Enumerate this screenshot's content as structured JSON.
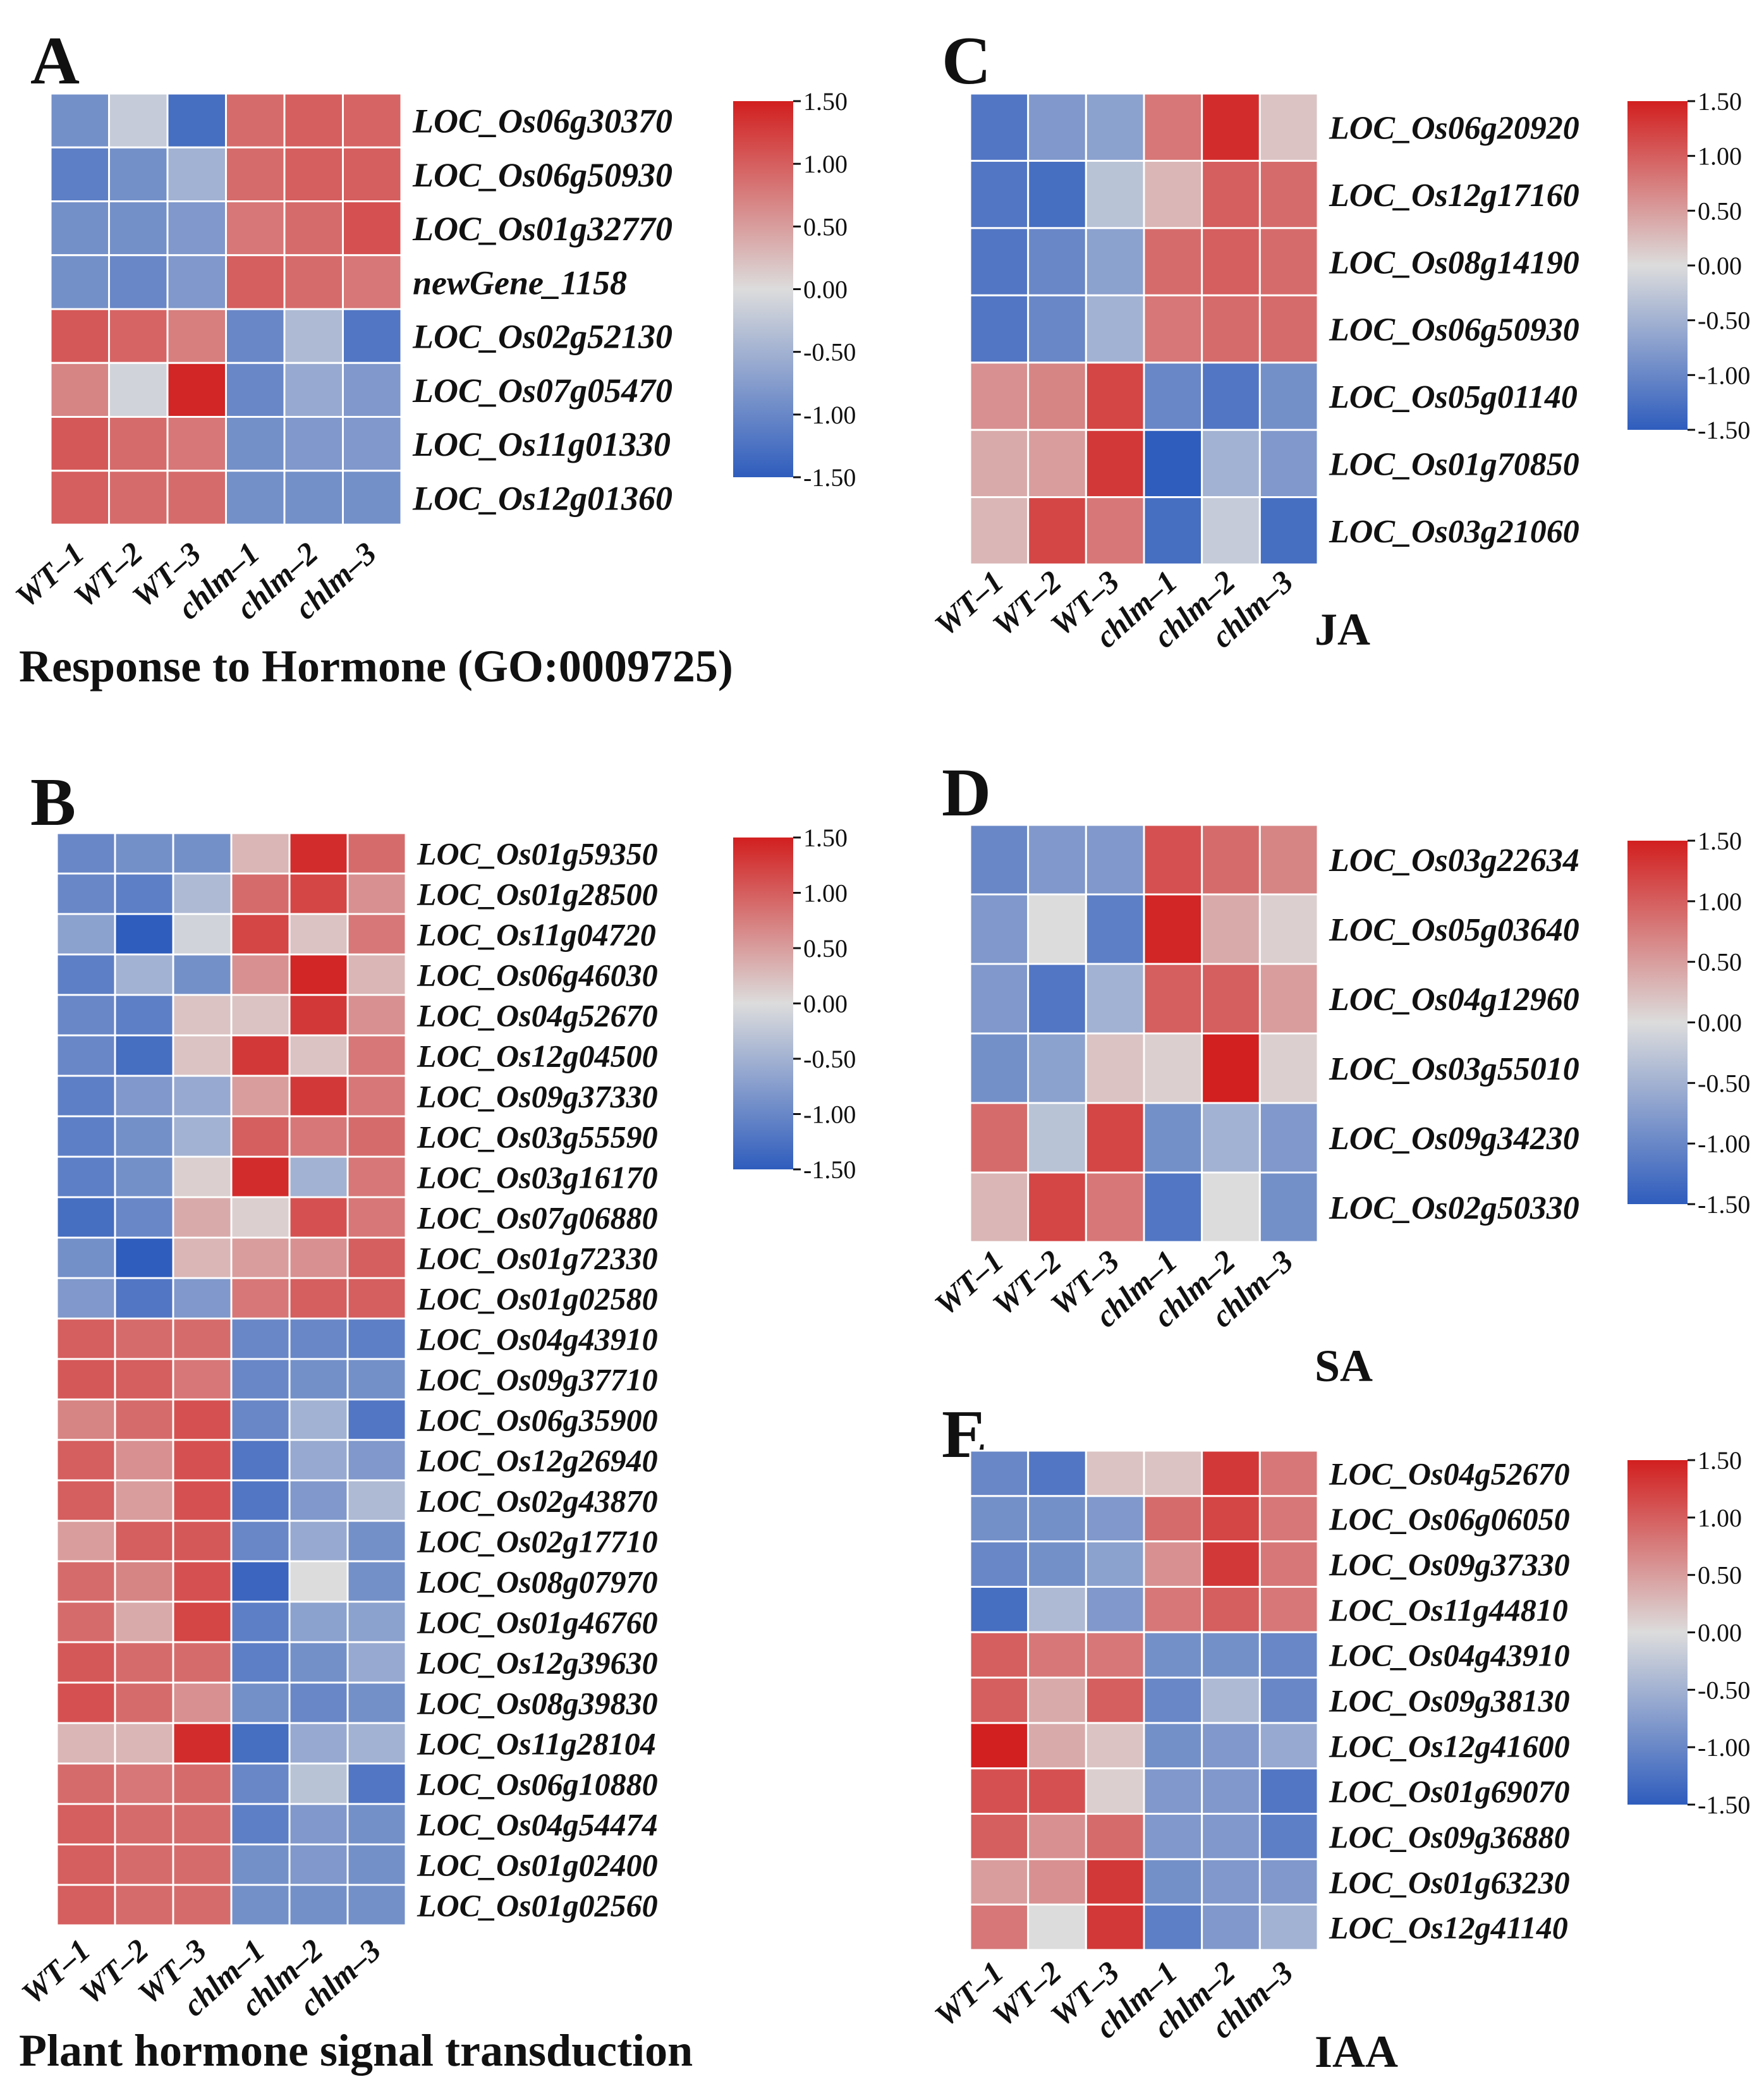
{
  "figure": {
    "colors": {
      "low": "#2f5dbd",
      "mid": "#dcdcdc",
      "high": "#d21f1f",
      "grid": "#ffffff"
    }
  },
  "chart_data": [
    {
      "type": "heatmap",
      "panel_letter": "A",
      "title": "Response to Hormone (GO:0009725)",
      "columns": [
        "WT–1",
        "WT–2",
        "WT–3",
        "chlm–1",
        "chlm–2",
        "chlm–3"
      ],
      "rows": [
        "LOC_Os06g30370",
        "LOC_Os06g50930",
        "LOC_Os01g32770",
        "newGene_1158",
        "LOC_Os02g52130",
        "LOC_Os07g05470",
        "LOC_Os11g01330",
        "LOC_Os12g01360"
      ],
      "values": [
        [
          -0.9,
          -0.2,
          -1.3,
          0.9,
          1.0,
          0.95
        ],
        [
          -1.1,
          -0.9,
          -0.5,
          0.9,
          1.0,
          1.0
        ],
        [
          -0.9,
          -0.9,
          -0.8,
          0.8,
          0.9,
          1.1
        ],
        [
          -0.9,
          -1.0,
          -0.8,
          1.0,
          0.9,
          0.8
        ],
        [
          1.05,
          0.95,
          0.75,
          -1.0,
          -0.4,
          -1.2
        ],
        [
          0.7,
          -0.1,
          1.45,
          -1.0,
          -0.6,
          -0.8
        ],
        [
          1.05,
          0.9,
          0.8,
          -0.9,
          -0.8,
          -0.8
        ],
        [
          1.0,
          0.9,
          0.9,
          -0.9,
          -0.9,
          -0.9
        ]
      ],
      "colorbar": {
        "ticks": [
          "1.50",
          "1.00",
          "0.50",
          "0.00",
          "-0.50",
          "-1.00",
          "-1.50"
        ],
        "range": [
          -1.5,
          1.5
        ]
      }
    },
    {
      "type": "heatmap",
      "panel_letter": "B",
      "title": "Plant hormone signal transduction",
      "columns": [
        "WT–1",
        "WT–2",
        "WT–3",
        "chlm–1",
        "chlm–2",
        "chlm–3"
      ],
      "rows": [
        "LOC_Os01g59350",
        "LOC_Os01g28500",
        "LOC_Os11g04720",
        "LOC_Os06g46030",
        "LOC_Os04g52670",
        "LOC_Os12g04500",
        "LOC_Os09g37330",
        "LOC_Os03g55590",
        "LOC_Os03g16170",
        "LOC_Os07g06880",
        "LOC_Os01g72330",
        "LOC_Os01g02580",
        "LOC_Os04g43910",
        "LOC_Os09g37710",
        "LOC_Os06g35900",
        "LOC_Os12g26940",
        "LOC_Os02g43870",
        "LOC_Os02g17710",
        "LOC_Os08g07970",
        "LOC_Os01g46760",
        "LOC_Os12g39630",
        "LOC_Os08g39830",
        "LOC_Os11g28104",
        "LOC_Os06g10880",
        "LOC_Os04g54474",
        "LOC_Os01g02400",
        "LOC_Os01g02560"
      ],
      "values": [
        [
          -1.0,
          -0.9,
          -0.9,
          0.3,
          1.4,
          0.9
        ],
        [
          -1.0,
          -1.1,
          -0.4,
          0.9,
          1.2,
          0.6
        ],
        [
          -0.7,
          -1.5,
          -0.1,
          1.2,
          0.2,
          0.8
        ],
        [
          -1.1,
          -0.5,
          -0.9,
          0.6,
          1.45,
          0.3
        ],
        [
          -1.0,
          -1.1,
          0.2,
          0.2,
          1.3,
          0.6
        ],
        [
          -1.0,
          -1.3,
          0.2,
          1.3,
          0.2,
          0.8
        ],
        [
          -1.1,
          -0.8,
          -0.6,
          0.5,
          1.3,
          0.8
        ],
        [
          -1.1,
          -0.9,
          -0.5,
          1.0,
          0.8,
          0.9
        ],
        [
          -1.1,
          -0.9,
          0.1,
          1.4,
          -0.5,
          0.8
        ],
        [
          -1.3,
          -1.0,
          0.4,
          0.1,
          1.1,
          0.8
        ],
        [
          -0.9,
          -1.5,
          0.3,
          0.5,
          0.6,
          1.0
        ],
        [
          -0.8,
          -1.2,
          -0.8,
          0.8,
          1.0,
          1.0
        ],
        [
          1.0,
          0.9,
          0.9,
          -1.0,
          -1.0,
          -1.1
        ],
        [
          1.05,
          1.0,
          0.8,
          -1.0,
          -0.9,
          -0.9
        ],
        [
          0.7,
          0.9,
          1.1,
          -1.0,
          -0.5,
          -1.2
        ],
        [
          1.0,
          0.6,
          1.1,
          -1.2,
          -0.6,
          -0.8
        ],
        [
          1.0,
          0.5,
          1.1,
          -1.2,
          -0.8,
          -0.4
        ],
        [
          0.5,
          1.0,
          1.05,
          -1.0,
          -0.6,
          -0.9
        ],
        [
          0.9,
          0.7,
          1.1,
          -1.4,
          0.0,
          -0.9
        ],
        [
          0.9,
          0.4,
          1.2,
          -1.1,
          -0.7,
          -0.7
        ],
        [
          1.05,
          0.9,
          0.9,
          -1.1,
          -0.9,
          -0.6
        ],
        [
          1.1,
          0.9,
          0.6,
          -0.9,
          -1.0,
          -0.9
        ],
        [
          0.3,
          0.3,
          1.4,
          -1.3,
          -0.6,
          -0.5
        ],
        [
          0.9,
          0.8,
          0.9,
          -1.0,
          -0.3,
          -1.2
        ],
        [
          1.0,
          0.9,
          0.9,
          -1.1,
          -0.8,
          -0.9
        ],
        [
          1.0,
          0.9,
          0.9,
          -0.9,
          -0.8,
          -0.9
        ],
        [
          1.0,
          0.9,
          0.9,
          -0.9,
          -0.9,
          -0.9
        ]
      ],
      "colorbar": {
        "ticks": [
          "1.50",
          "1.00",
          "0.50",
          "0.00",
          "-0.50",
          "-1.00",
          "-1.50"
        ],
        "range": [
          -1.5,
          1.5
        ]
      }
    },
    {
      "type": "heatmap",
      "panel_letter": "C",
      "title": "JA",
      "columns": [
        "WT–1",
        "WT–2",
        "WT–3",
        "chlm–1",
        "chlm–2",
        "chlm–3"
      ],
      "rows": [
        "LOC_Os06g20920",
        "LOC_Os12g17160",
        "LOC_Os08g14190",
        "LOC_Os06g50930",
        "LOC_Os05g01140",
        "LOC_Os01g70850",
        "LOC_Os03g21060"
      ],
      "values": [
        [
          -1.2,
          -0.8,
          -0.7,
          0.8,
          1.4,
          0.2
        ],
        [
          -1.2,
          -1.3,
          -0.3,
          0.3,
          1.0,
          0.9
        ],
        [
          -1.2,
          -1.0,
          -0.7,
          0.9,
          1.0,
          0.9
        ],
        [
          -1.2,
          -1.0,
          -0.5,
          0.8,
          0.9,
          0.9
        ],
        [
          0.6,
          0.7,
          1.2,
          -1.0,
          -1.2,
          -0.9
        ],
        [
          0.4,
          0.5,
          1.3,
          -1.5,
          -0.5,
          -0.8
        ],
        [
          0.3,
          1.2,
          0.8,
          -1.3,
          -0.2,
          -1.3
        ]
      ],
      "colorbar": {
        "ticks": [
          "1.50",
          "1.00",
          "0.50",
          "0.00",
          "-0.50",
          "-1.00",
          "-1.50"
        ],
        "range": [
          -1.5,
          1.5
        ]
      }
    },
    {
      "type": "heatmap",
      "panel_letter": "D",
      "title": "SA",
      "columns": [
        "WT–1",
        "WT–2",
        "WT–3",
        "chlm–1",
        "chlm–2",
        "chlm–3"
      ],
      "rows": [
        "LOC_Os03g22634",
        "LOC_Os05g03640",
        "LOC_Os04g12960",
        "LOC_Os03g55010",
        "LOC_Os09g34230",
        "LOC_Os02g50330"
      ],
      "values": [
        [
          -1.0,
          -0.8,
          -0.8,
          1.1,
          0.9,
          0.7
        ],
        [
          -0.8,
          0.0,
          -1.1,
          1.45,
          0.4,
          0.1
        ],
        [
          -0.8,
          -1.2,
          -0.5,
          1.0,
          1.0,
          0.5
        ],
        [
          -0.9,
          -0.7,
          0.2,
          0.1,
          1.5,
          0.1
        ],
        [
          0.9,
          -0.3,
          1.2,
          -0.9,
          -0.5,
          -0.8
        ],
        [
          0.3,
          1.2,
          0.8,
          -1.2,
          0.0,
          -0.9
        ]
      ],
      "colorbar": {
        "ticks": [
          "1.50",
          "1.00",
          "0.50",
          "0.00",
          "-0.50",
          "-1.00",
          "-1.50"
        ],
        "range": [
          -1.5,
          1.5
        ]
      }
    },
    {
      "type": "heatmap",
      "panel_letter": "E",
      "title": "IAA",
      "columns": [
        "WT–1",
        "WT–2",
        "WT–3",
        "chlm–1",
        "chlm–2",
        "chlm–3"
      ],
      "rows": [
        "LOC_Os04g52670",
        "LOC_Os06g06050",
        "LOC_Os09g37330",
        "LOC_Os11g44810",
        "LOC_Os04g43910",
        "LOC_Os09g38130",
        "LOC_Os12g41600",
        "LOC_Os01g69070",
        "LOC_Os09g36880",
        "LOC_Os01g63230",
        "LOC_Os12g41140"
      ],
      "values": [
        [
          -1.0,
          -1.2,
          0.2,
          0.2,
          1.3,
          0.8
        ],
        [
          -0.9,
          -0.9,
          -0.8,
          0.9,
          1.2,
          0.8
        ],
        [
          -1.0,
          -0.9,
          -0.7,
          0.6,
          1.3,
          0.8
        ],
        [
          -1.3,
          -0.4,
          -0.8,
          0.8,
          1.0,
          0.8
        ],
        [
          1.0,
          0.8,
          0.8,
          -0.9,
          -0.9,
          -1.0
        ],
        [
          1.0,
          0.4,
          1.0,
          -1.0,
          -0.4,
          -1.0
        ],
        [
          1.5,
          0.4,
          0.2,
          -0.9,
          -0.8,
          -0.6
        ],
        [
          1.1,
          1.1,
          0.1,
          -0.8,
          -0.8,
          -1.2
        ],
        [
          1.0,
          0.6,
          0.9,
          -0.8,
          -0.8,
          -1.1
        ],
        [
          0.5,
          0.6,
          1.3,
          -0.9,
          -0.8,
          -0.8
        ],
        [
          0.8,
          0.0,
          1.3,
          -1.1,
          -0.8,
          -0.5
        ]
      ],
      "colorbar": {
        "ticks": [
          "1.50",
          "1.00",
          "0.50",
          "0.00",
          "-0.50",
          "-1.00",
          "-1.50"
        ],
        "range": [
          -1.5,
          1.5
        ]
      }
    }
  ]
}
